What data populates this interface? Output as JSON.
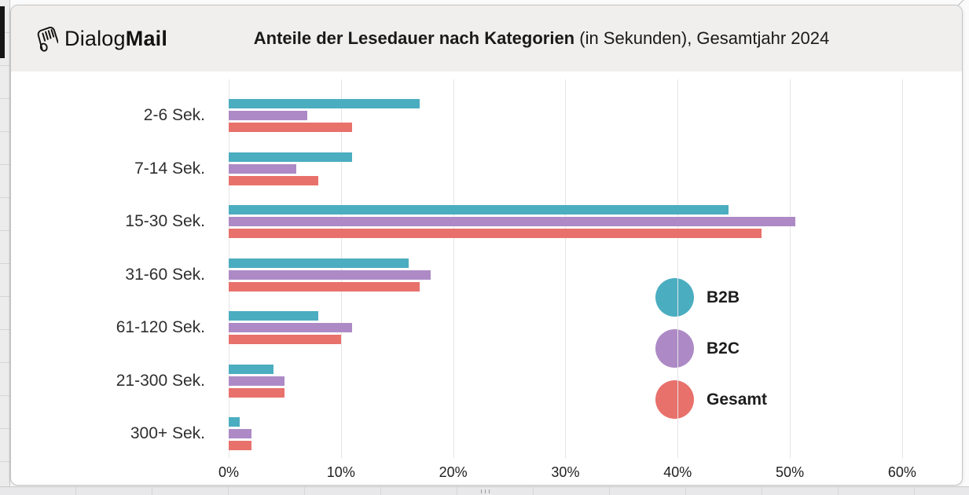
{
  "header": {
    "logo_regular": "Dialog",
    "logo_bold": "Mail",
    "logo_icon": "rolled-newspaper-icon",
    "title_bold": "Anteile der Lesedauer nach Kategorien",
    "title_regular": " (in Sekunden), Gesamtjahr 2024"
  },
  "colors": {
    "b2b": "#4badc0",
    "b2c": "#ad8ac6",
    "gesamt": "#e8716b",
    "header_bg": "#f0efed",
    "gridline": "#e5e5e5"
  },
  "chart_data": {
    "type": "bar",
    "orientation": "horizontal",
    "title": "Anteile der Lesedauer nach Kategorien (in Sekunden), Gesamtjahr 2024",
    "categories": [
      "2-6 Sek.",
      "7-14 Sek.",
      "15-30 Sek.",
      "31-60 Sek.",
      "61-120 Sek.",
      "21-300 Sek.",
      "300+ Sek."
    ],
    "series": [
      {
        "name": "B2B",
        "color": "#4badc0",
        "values": [
          17,
          11,
          44.5,
          16,
          8,
          4,
          1
        ]
      },
      {
        "name": "B2C",
        "color": "#ad8ac6",
        "values": [
          7,
          6,
          50.5,
          18,
          11,
          5,
          2
        ]
      },
      {
        "name": "Gesamt",
        "color": "#e8716b",
        "values": [
          11,
          8,
          47.5,
          17,
          10,
          5,
          2
        ]
      }
    ],
    "x_tick_labels": [
      "0%",
      "10%",
      "20%",
      "30%",
      "40%",
      "50%",
      "60%"
    ],
    "x_tick_values": [
      0,
      10,
      20,
      30,
      40,
      50,
      60
    ],
    "xlim": [
      0,
      65.4
    ],
    "xlabel": "",
    "ylabel": "",
    "grid": true,
    "legend_position": "right-middle",
    "legend_entries": [
      "B2B",
      "B2C",
      "Gesamt"
    ]
  }
}
